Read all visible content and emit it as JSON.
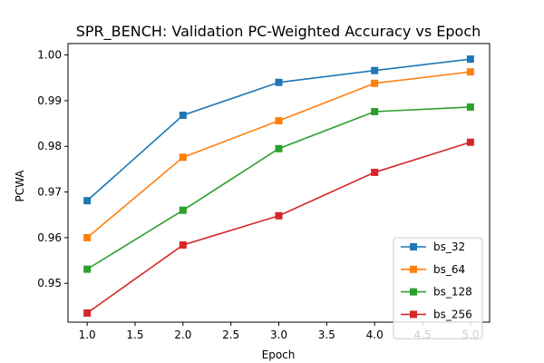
{
  "chart_data": {
    "type": "line",
    "title": "SPR_BENCH: Validation PC-Weighted Accuracy vs Epoch",
    "xlabel": "Epoch",
    "ylabel": "PCWA",
    "xlim": [
      0.8,
      5.2
    ],
    "ylim": [
      0.9415,
      1.0025
    ],
    "xticks": [
      1.0,
      1.5,
      2.0,
      2.5,
      3.0,
      3.5,
      4.0,
      4.5,
      5.0
    ],
    "xtick_labels": [
      "1.0",
      "1.5",
      "2.0",
      "2.5",
      "3.0",
      "3.5",
      "4.0",
      "4.5",
      "5.0"
    ],
    "yticks": [
      0.95,
      0.96,
      0.97,
      0.98,
      0.99,
      1.0
    ],
    "ytick_labels": [
      "0.95",
      "0.96",
      "0.97",
      "0.98",
      "0.99",
      "1.00"
    ],
    "grid": false,
    "legend_position": "lower-right",
    "x": [
      1,
      2,
      3,
      4,
      5
    ],
    "series": [
      {
        "name": "bs_32",
        "color": "#1f77b4",
        "marker": "square",
        "values": [
          0.9681,
          0.9868,
          0.994,
          0.9966,
          0.9991
        ]
      },
      {
        "name": "bs_64",
        "color": "#ff7f0e",
        "marker": "square",
        "values": [
          0.96,
          0.9776,
          0.9856,
          0.9938,
          0.9963
        ]
      },
      {
        "name": "bs_128",
        "color": "#2ca02c",
        "marker": "square",
        "values": [
          0.9531,
          0.966,
          0.9795,
          0.9876,
          0.9886
        ]
      },
      {
        "name": "bs_256",
        "color": "#d62728",
        "marker": "square",
        "values": [
          0.9435,
          0.9584,
          0.9648,
          0.9743,
          0.9809
        ]
      }
    ]
  }
}
